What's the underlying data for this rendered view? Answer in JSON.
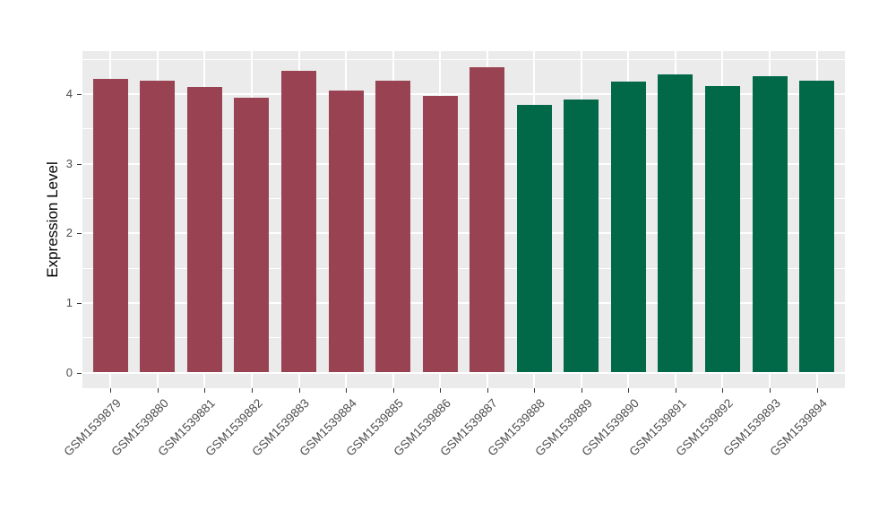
{
  "chart_data": {
    "type": "bar",
    "title": "",
    "xlabel": "",
    "ylabel": "Expression Level",
    "categories": [
      "GSM1539879",
      "GSM1539880",
      "GSM1539881",
      "GSM1539882",
      "GSM1539883",
      "GSM1539884",
      "GSM1539885",
      "GSM1539886",
      "GSM1539887",
      "GSM1539888",
      "GSM1539889",
      "GSM1539890",
      "GSM1539891",
      "GSM1539892",
      "GSM1539893",
      "GSM1539894"
    ],
    "values": [
      4.22,
      4.19,
      4.1,
      3.95,
      4.33,
      4.05,
      4.19,
      3.98,
      4.39,
      3.85,
      3.92,
      4.18,
      4.28,
      4.12,
      4.26,
      4.19
    ],
    "bar_colors": [
      "#994352",
      "#994352",
      "#994352",
      "#994352",
      "#994352",
      "#994352",
      "#994352",
      "#994352",
      "#994352",
      "#016848",
      "#016848",
      "#016848",
      "#016848",
      "#016848",
      "#016848",
      "#016848"
    ],
    "groups": [
      {
        "name": "group-1-maroon",
        "color": "#994352",
        "categories_count": 9
      },
      {
        "name": "group-2-green",
        "color": "#016848",
        "categories_count": 7
      }
    ],
    "yticks": [
      "0",
      "1",
      "2",
      "3",
      "4"
    ],
    "ytick_values": [
      0,
      1,
      2,
      3,
      4
    ],
    "yminor_values": [
      0.5,
      1.5,
      2.5,
      3.5,
      4.5
    ],
    "ylim": [
      -0.23,
      4.62
    ],
    "grid": "white major and minor horizontal lines plus vertical lines at bar centers on gray panel",
    "legend": "none",
    "panel_bg": "#EBEBEB",
    "tick_label_color": "#4D4D4D",
    "axis_title_color": "#000000",
    "x_label_rotation_deg": 45
  }
}
